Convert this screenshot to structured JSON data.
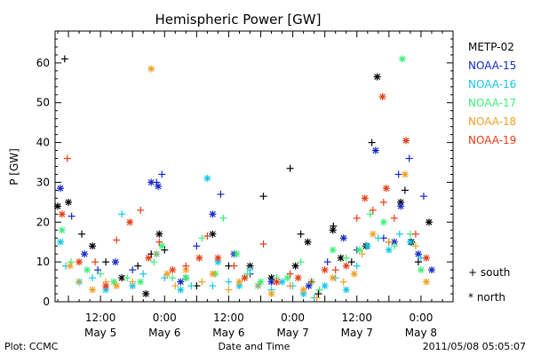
{
  "chart_data": {
    "type": "scatter",
    "title": "Hemispheric Power [GW]",
    "xlabel": "Date and Time",
    "ylabel": "P [GW]",
    "ylim": [
      0,
      68
    ],
    "y_ticks": [
      0,
      10,
      20,
      30,
      40,
      50,
      60
    ],
    "x_unit": "hours since 2011-05-04 00:00 UT",
    "xlim": [
      3.5,
      78
    ],
    "x_ticks": [
      {
        "x": 12,
        "time": "12:00",
        "date": "May 5"
      },
      {
        "x": 24,
        "time": "0:00",
        "date": "May 6"
      },
      {
        "x": 36,
        "time": "12:00",
        "date": "May 6"
      },
      {
        "x": 48,
        "time": "0:00",
        "date": "May 7"
      },
      {
        "x": 60,
        "time": "12:00",
        "date": "May 7"
      },
      {
        "x": 72,
        "time": "0:00",
        "date": "May 8"
      }
    ],
    "series": [
      {
        "name": "METP-02",
        "color": "#000000",
        "values": [
          [
            4.0,
            24
          ],
          [
            5.3,
            61
          ],
          [
            6.0,
            25
          ],
          [
            8.5,
            17
          ],
          [
            10.5,
            14
          ],
          [
            13,
            10
          ],
          [
            16,
            6
          ],
          [
            19,
            9
          ],
          [
            20.5,
            2
          ],
          [
            21.5,
            12
          ],
          [
            23,
            17
          ],
          [
            24,
            13
          ],
          [
            28,
            6
          ],
          [
            30,
            4
          ],
          [
            33,
            17
          ],
          [
            36,
            9
          ],
          [
            40,
            9
          ],
          [
            42.5,
            26.5
          ],
          [
            44,
            6
          ],
          [
            47.5,
            33.5
          ],
          [
            48.5,
            9
          ],
          [
            49.5,
            17
          ],
          [
            50.8,
            15
          ],
          [
            52.8,
            2
          ],
          [
            55.5,
            18
          ],
          [
            55.6,
            19
          ],
          [
            57,
            11
          ],
          [
            59,
            10
          ],
          [
            61.7,
            14
          ],
          [
            62.8,
            40
          ],
          [
            63.8,
            56.5
          ],
          [
            66,
            15
          ],
          [
            68.2,
            25
          ],
          [
            69,
            28
          ],
          [
            70.2,
            15
          ],
          [
            71.5,
            10
          ],
          [
            73.5,
            20
          ]
        ]
      },
      {
        "name": "NOAA-15",
        "color": "#1428c8",
        "values": [
          [
            4.5,
            28.5
          ],
          [
            6.6,
            21.5
          ],
          [
            9,
            12
          ],
          [
            11.5,
            8
          ],
          [
            14.8,
            10
          ],
          [
            18,
            8
          ],
          [
            21.5,
            30
          ],
          [
            22.5,
            30
          ],
          [
            22.8,
            29
          ],
          [
            23.5,
            32
          ],
          [
            27,
            5
          ],
          [
            30,
            14
          ],
          [
            33,
            22
          ],
          [
            34.5,
            27
          ],
          [
            37,
            12
          ],
          [
            40,
            7
          ],
          [
            44,
            5
          ],
          [
            47.5,
            4
          ],
          [
            51,
            4
          ],
          [
            54.5,
            10
          ],
          [
            57.5,
            16
          ],
          [
            60,
            13
          ],
          [
            63.5,
            38
          ],
          [
            65,
            16
          ],
          [
            67,
            15
          ],
          [
            67.8,
            32
          ],
          [
            68.2,
            24
          ],
          [
            69.8,
            36
          ],
          [
            71.5,
            12
          ],
          [
            72.5,
            26.5
          ],
          [
            74,
            8
          ]
        ]
      },
      {
        "name": "NOAA-16",
        "color": "#14c8e6",
        "values": [
          [
            4.5,
            15
          ],
          [
            5.5,
            9
          ],
          [
            8,
            5
          ],
          [
            10.5,
            6
          ],
          [
            13,
            3
          ],
          [
            16,
            22
          ],
          [
            18,
            4
          ],
          [
            20,
            7
          ],
          [
            22.5,
            12
          ],
          [
            24,
            6
          ],
          [
            27,
            3
          ],
          [
            29,
            4
          ],
          [
            32,
            31
          ],
          [
            33,
            4
          ],
          [
            34,
            10
          ],
          [
            36,
            5
          ],
          [
            38,
            4
          ],
          [
            40,
            8
          ],
          [
            41.5,
            4
          ],
          [
            44,
            3
          ],
          [
            46,
            5
          ],
          [
            48,
            4
          ],
          [
            50,
            2
          ],
          [
            52,
            1
          ],
          [
            54,
            4
          ],
          [
            56,
            6
          ],
          [
            58,
            3
          ],
          [
            60,
            9
          ],
          [
            62,
            14
          ],
          [
            64,
            16
          ],
          [
            66,
            13
          ],
          [
            68,
            17
          ],
          [
            70,
            15
          ],
          [
            72,
            11
          ]
        ]
      },
      {
        "name": "NOAA-17",
        "color": "#3cf078",
        "values": [
          [
            4.8,
            18
          ],
          [
            6.5,
            10
          ],
          [
            9.5,
            8
          ],
          [
            12,
            7
          ],
          [
            14.5,
            5
          ],
          [
            17,
            6
          ],
          [
            19.5,
            5
          ],
          [
            22,
            10
          ],
          [
            23.5,
            14
          ],
          [
            25.5,
            6
          ],
          [
            28,
            6
          ],
          [
            31,
            16
          ],
          [
            33.5,
            7
          ],
          [
            35,
            21
          ],
          [
            37.5,
            12
          ],
          [
            39.5,
            7
          ],
          [
            42,
            5
          ],
          [
            45,
            6
          ],
          [
            47,
            6
          ],
          [
            49.5,
            10
          ],
          [
            51.5,
            5
          ],
          [
            53,
            3
          ],
          [
            55.5,
            13
          ],
          [
            58,
            11
          ],
          [
            60.5,
            13
          ],
          [
            62.5,
            22
          ],
          [
            65,
            20
          ],
          [
            67,
            14
          ],
          [
            68.5,
            61
          ],
          [
            70,
            17
          ],
          [
            72,
            8
          ]
        ]
      },
      {
        "name": "NOAA-18",
        "color": "#f0a028",
        "values": [
          [
            6.3,
            9
          ],
          [
            8,
            5
          ],
          [
            10.5,
            3
          ],
          [
            13,
            5
          ],
          [
            15,
            4
          ],
          [
            18,
            5
          ],
          [
            21.5,
            58.5
          ],
          [
            22.5,
            12
          ],
          [
            24.5,
            7
          ],
          [
            26,
            4
          ],
          [
            28,
            8
          ],
          [
            31,
            5
          ],
          [
            33,
            7
          ],
          [
            36,
            3
          ],
          [
            38,
            5
          ],
          [
            41.5,
            4
          ],
          [
            44,
            2
          ],
          [
            47.5,
            4
          ],
          [
            50,
            3
          ],
          [
            52.5,
            1
          ],
          [
            55.5,
            6
          ],
          [
            57.5,
            5
          ],
          [
            59.5,
            7
          ],
          [
            61,
            12
          ],
          [
            63,
            17
          ],
          [
            66,
            15
          ],
          [
            69,
            32
          ],
          [
            71,
            14
          ],
          [
            73,
            5
          ]
        ]
      },
      {
        "name": "NOAA-19",
        "color": "#e63c14",
        "values": [
          [
            4.8,
            22
          ],
          [
            5.8,
            36
          ],
          [
            8,
            10
          ],
          [
            11,
            10
          ],
          [
            13,
            4
          ],
          [
            15,
            15.5
          ],
          [
            17.5,
            20
          ],
          [
            19.5,
            23
          ],
          [
            21,
            11
          ],
          [
            23,
            15
          ],
          [
            25.5,
            8
          ],
          [
            28,
            9
          ],
          [
            30.5,
            11
          ],
          [
            32,
            16.5
          ],
          [
            34,
            11
          ],
          [
            37,
            9
          ],
          [
            39,
            6
          ],
          [
            42.5,
            14.5
          ],
          [
            45,
            5
          ],
          [
            47.5,
            7
          ],
          [
            49,
            6
          ],
          [
            51.5,
            5
          ],
          [
            54,
            8
          ],
          [
            56,
            8
          ],
          [
            58,
            9
          ],
          [
            60,
            21
          ],
          [
            61.5,
            26
          ],
          [
            63,
            23
          ],
          [
            64.8,
            51.5
          ],
          [
            65,
            25
          ],
          [
            65.5,
            28.5
          ],
          [
            67,
            21
          ],
          [
            69.2,
            40.5
          ],
          [
            71,
            17
          ],
          [
            73,
            11
          ]
        ]
      }
    ],
    "legend_position": "right",
    "symbol_legend": [
      {
        "symbol": "+",
        "label": "south"
      },
      {
        "symbol": "*",
        "label": "north"
      }
    ]
  },
  "footer": {
    "left": "Plot: CCMC",
    "center": "Date and Time",
    "right": "2011/05/08 05:05:07"
  }
}
